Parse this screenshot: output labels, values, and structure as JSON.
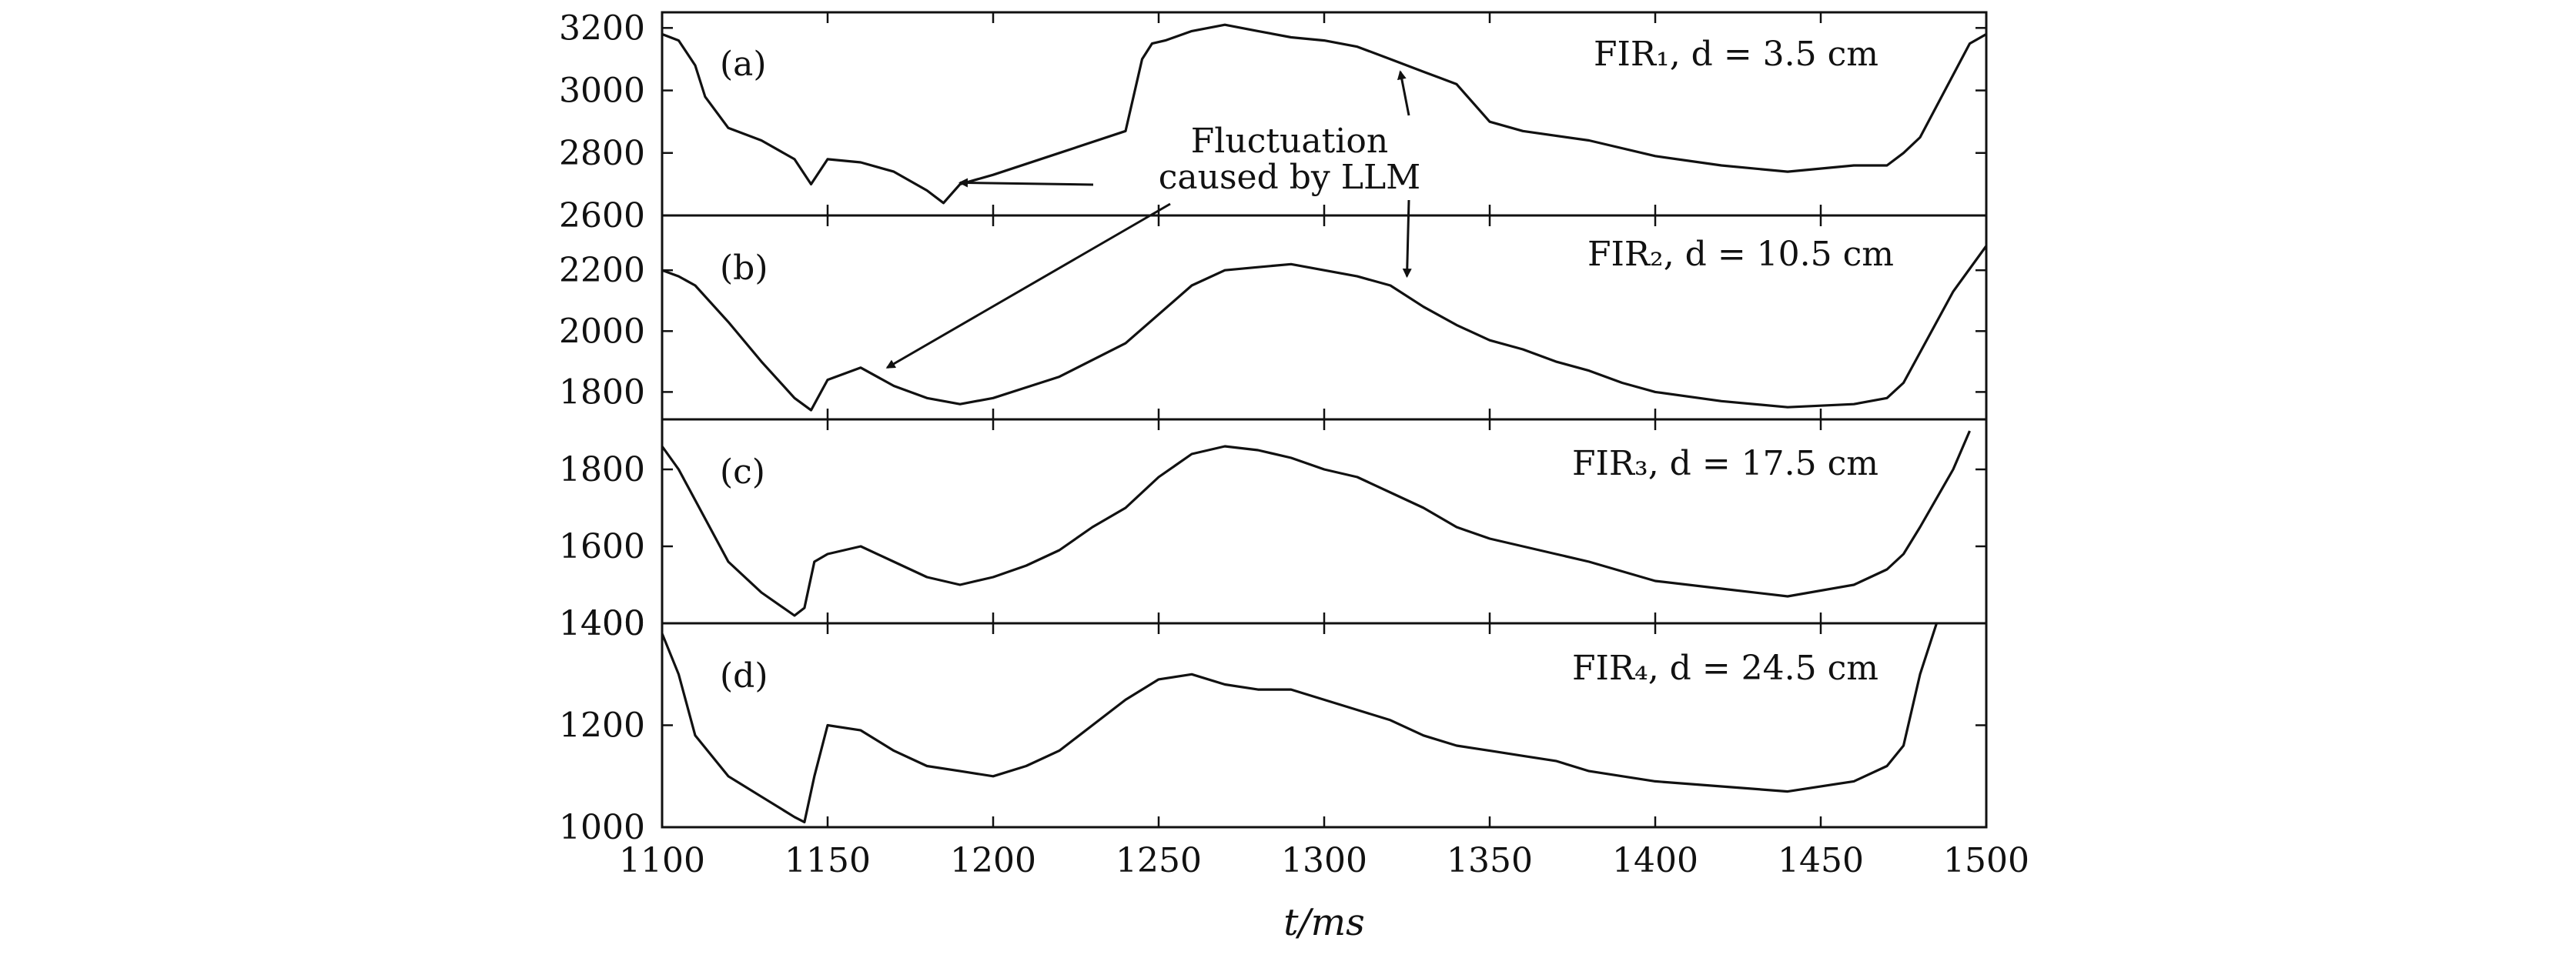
{
  "chart_data": {
    "type": "line",
    "xlabel": "t/ms",
    "xlim": [
      1100,
      1500
    ],
    "xticks": [
      1100,
      1150,
      1200,
      1250,
      1300,
      1350,
      1400,
      1450,
      1500
    ],
    "grid": false,
    "annotation": {
      "text_line1": "Fluctuation",
      "text_line2": "caused by LLM"
    },
    "panels": [
      {
        "tag": "(a)",
        "series_label": "FIR₁, d = 3.5 cm",
        "ylim": [
          2600,
          3250
        ],
        "yticks": [
          2600,
          2800,
          3000,
          3200
        ],
        "x": [
          1100,
          1105,
          1110,
          1113,
          1120,
          1130,
          1140,
          1145,
          1150,
          1160,
          1170,
          1180,
          1185,
          1190,
          1200,
          1220,
          1240,
          1245,
          1248,
          1252,
          1260,
          1270,
          1280,
          1290,
          1300,
          1310,
          1320,
          1330,
          1335,
          1340,
          1350,
          1360,
          1380,
          1400,
          1420,
          1440,
          1460,
          1470,
          1475,
          1480,
          1490,
          1495,
          1500
        ],
        "y": [
          3180,
          3160,
          3080,
          2980,
          2880,
          2840,
          2780,
          2700,
          2780,
          2770,
          2740,
          2680,
          2640,
          2700,
          2730,
          2800,
          2870,
          3100,
          3150,
          3160,
          3190,
          3210,
          3190,
          3170,
          3160,
          3140,
          3100,
          3060,
          3040,
          3020,
          2900,
          2870,
          2840,
          2790,
          2760,
          2740,
          2760,
          2760,
          2800,
          2850,
          3050,
          3150,
          3180
        ]
      },
      {
        "tag": "(b)",
        "series_label": "FIR₂, d = 10.5 cm",
        "ylim": [
          1710,
          2380
        ],
        "yticks": [
          1800,
          2000,
          2200
        ],
        "x": [
          1100,
          1105,
          1110,
          1120,
          1130,
          1140,
          1145,
          1150,
          1160,
          1170,
          1180,
          1190,
          1200,
          1220,
          1240,
          1260,
          1270,
          1280,
          1290,
          1300,
          1310,
          1320,
          1330,
          1340,
          1350,
          1360,
          1370,
          1380,
          1390,
          1400,
          1420,
          1440,
          1460,
          1470,
          1475,
          1480,
          1490,
          1500
        ],
        "y": [
          2200,
          2180,
          2150,
          2030,
          1900,
          1780,
          1740,
          1840,
          1880,
          1820,
          1780,
          1760,
          1780,
          1850,
          1960,
          2150,
          2200,
          2210,
          2220,
          2200,
          2180,
          2150,
          2080,
          2020,
          1970,
          1940,
          1900,
          1870,
          1830,
          1800,
          1770,
          1750,
          1760,
          1780,
          1830,
          1930,
          2130,
          2280
        ]
      },
      {
        "tag": "(c)",
        "series_label": "FIR₃, d = 17.5 cm",
        "ylim": [
          1400,
          1930
        ],
        "yticks": [
          1400,
          1600,
          1800
        ],
        "x": [
          1100,
          1105,
          1110,
          1120,
          1130,
          1140,
          1143,
          1146,
          1150,
          1160,
          1170,
          1180,
          1190,
          1200,
          1210,
          1220,
          1230,
          1240,
          1250,
          1260,
          1270,
          1280,
          1290,
          1300,
          1310,
          1320,
          1330,
          1340,
          1350,
          1360,
          1370,
          1380,
          1400,
          1420,
          1440,
          1460,
          1470,
          1475,
          1480,
          1490,
          1495
        ],
        "y": [
          1860,
          1800,
          1720,
          1560,
          1480,
          1420,
          1440,
          1560,
          1580,
          1600,
          1560,
          1520,
          1500,
          1520,
          1550,
          1590,
          1650,
          1700,
          1780,
          1840,
          1860,
          1850,
          1830,
          1800,
          1780,
          1740,
          1700,
          1650,
          1620,
          1600,
          1580,
          1560,
          1510,
          1490,
          1470,
          1500,
          1540,
          1580,
          1650,
          1800,
          1900
        ]
      },
      {
        "tag": "(d)",
        "series_label": "FIR₄, d = 24.5 cm",
        "ylim": [
          1000,
          1400
        ],
        "yticks": [
          1000,
          1200,
          1400
        ],
        "x": [
          1100,
          1105,
          1110,
          1120,
          1130,
          1140,
          1143,
          1146,
          1150,
          1160,
          1170,
          1180,
          1190,
          1200,
          1210,
          1220,
          1230,
          1240,
          1250,
          1260,
          1270,
          1280,
          1290,
          1300,
          1310,
          1320,
          1330,
          1340,
          1350,
          1360,
          1370,
          1380,
          1400,
          1420,
          1440,
          1460,
          1470,
          1475,
          1480,
          1485
        ],
        "y": [
          1380,
          1300,
          1180,
          1100,
          1060,
          1020,
          1010,
          1100,
          1200,
          1190,
          1150,
          1120,
          1110,
          1100,
          1120,
          1150,
          1200,
          1250,
          1290,
          1300,
          1280,
          1270,
          1270,
          1250,
          1230,
          1210,
          1180,
          1160,
          1150,
          1140,
          1130,
          1110,
          1090,
          1080,
          1070,
          1090,
          1120,
          1160,
          1300,
          1400
        ]
      }
    ]
  }
}
